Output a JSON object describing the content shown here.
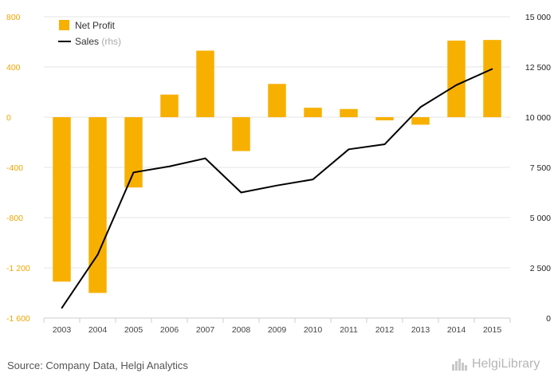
{
  "chart_data": {
    "type": "bar+line",
    "categories": [
      "2003",
      "2004",
      "2005",
      "2006",
      "2007",
      "2008",
      "2009",
      "2010",
      "2011",
      "2012",
      "2013",
      "2014",
      "2015"
    ],
    "series": [
      {
        "name": "Net Profit",
        "type": "bar",
        "axis": "left",
        "color": "#f7b000",
        "values": [
          -1310,
          -1400,
          -560,
          180,
          530,
          -270,
          265,
          75,
          65,
          -25,
          -60,
          610,
          615
        ]
      },
      {
        "name": "Sales",
        "type": "line",
        "axis": "right",
        "color": "#000000",
        "values": [
          500,
          3150,
          7250,
          7550,
          7950,
          6250,
          6600,
          6900,
          8400,
          8650,
          10500,
          11600,
          12400
        ]
      }
    ],
    "legend": [
      {
        "label": "Net Profit",
        "note": "",
        "color": "#f7b000",
        "kind": "bar"
      },
      {
        "label": "Sales",
        "note": "(rhs)",
        "color": "#000000",
        "kind": "line"
      }
    ],
    "left_axis": {
      "ylim": [
        -1600,
        800
      ],
      "ticks": [
        800,
        400,
        0,
        -400,
        -800,
        -1200,
        -1600
      ],
      "tick_labels": [
        "800",
        "400",
        "0",
        "-400",
        "-800",
        "-1 200",
        "-1 600"
      ]
    },
    "right_axis": {
      "ylim": [
        0,
        15000
      ],
      "ticks": [
        15000,
        12500,
        10000,
        7500,
        5000,
        2500,
        0
      ],
      "tick_labels": [
        "15 000",
        "12 500",
        "10 000",
        "7 500",
        "5 000",
        "2 500",
        "0"
      ]
    },
    "grid": true,
    "legend_position": "top-left"
  },
  "footer": {
    "source": "Source: Company Data, Helgi Analytics",
    "brand": "HelgiLibrary",
    "brand_icon": "city-skyline-icon"
  }
}
